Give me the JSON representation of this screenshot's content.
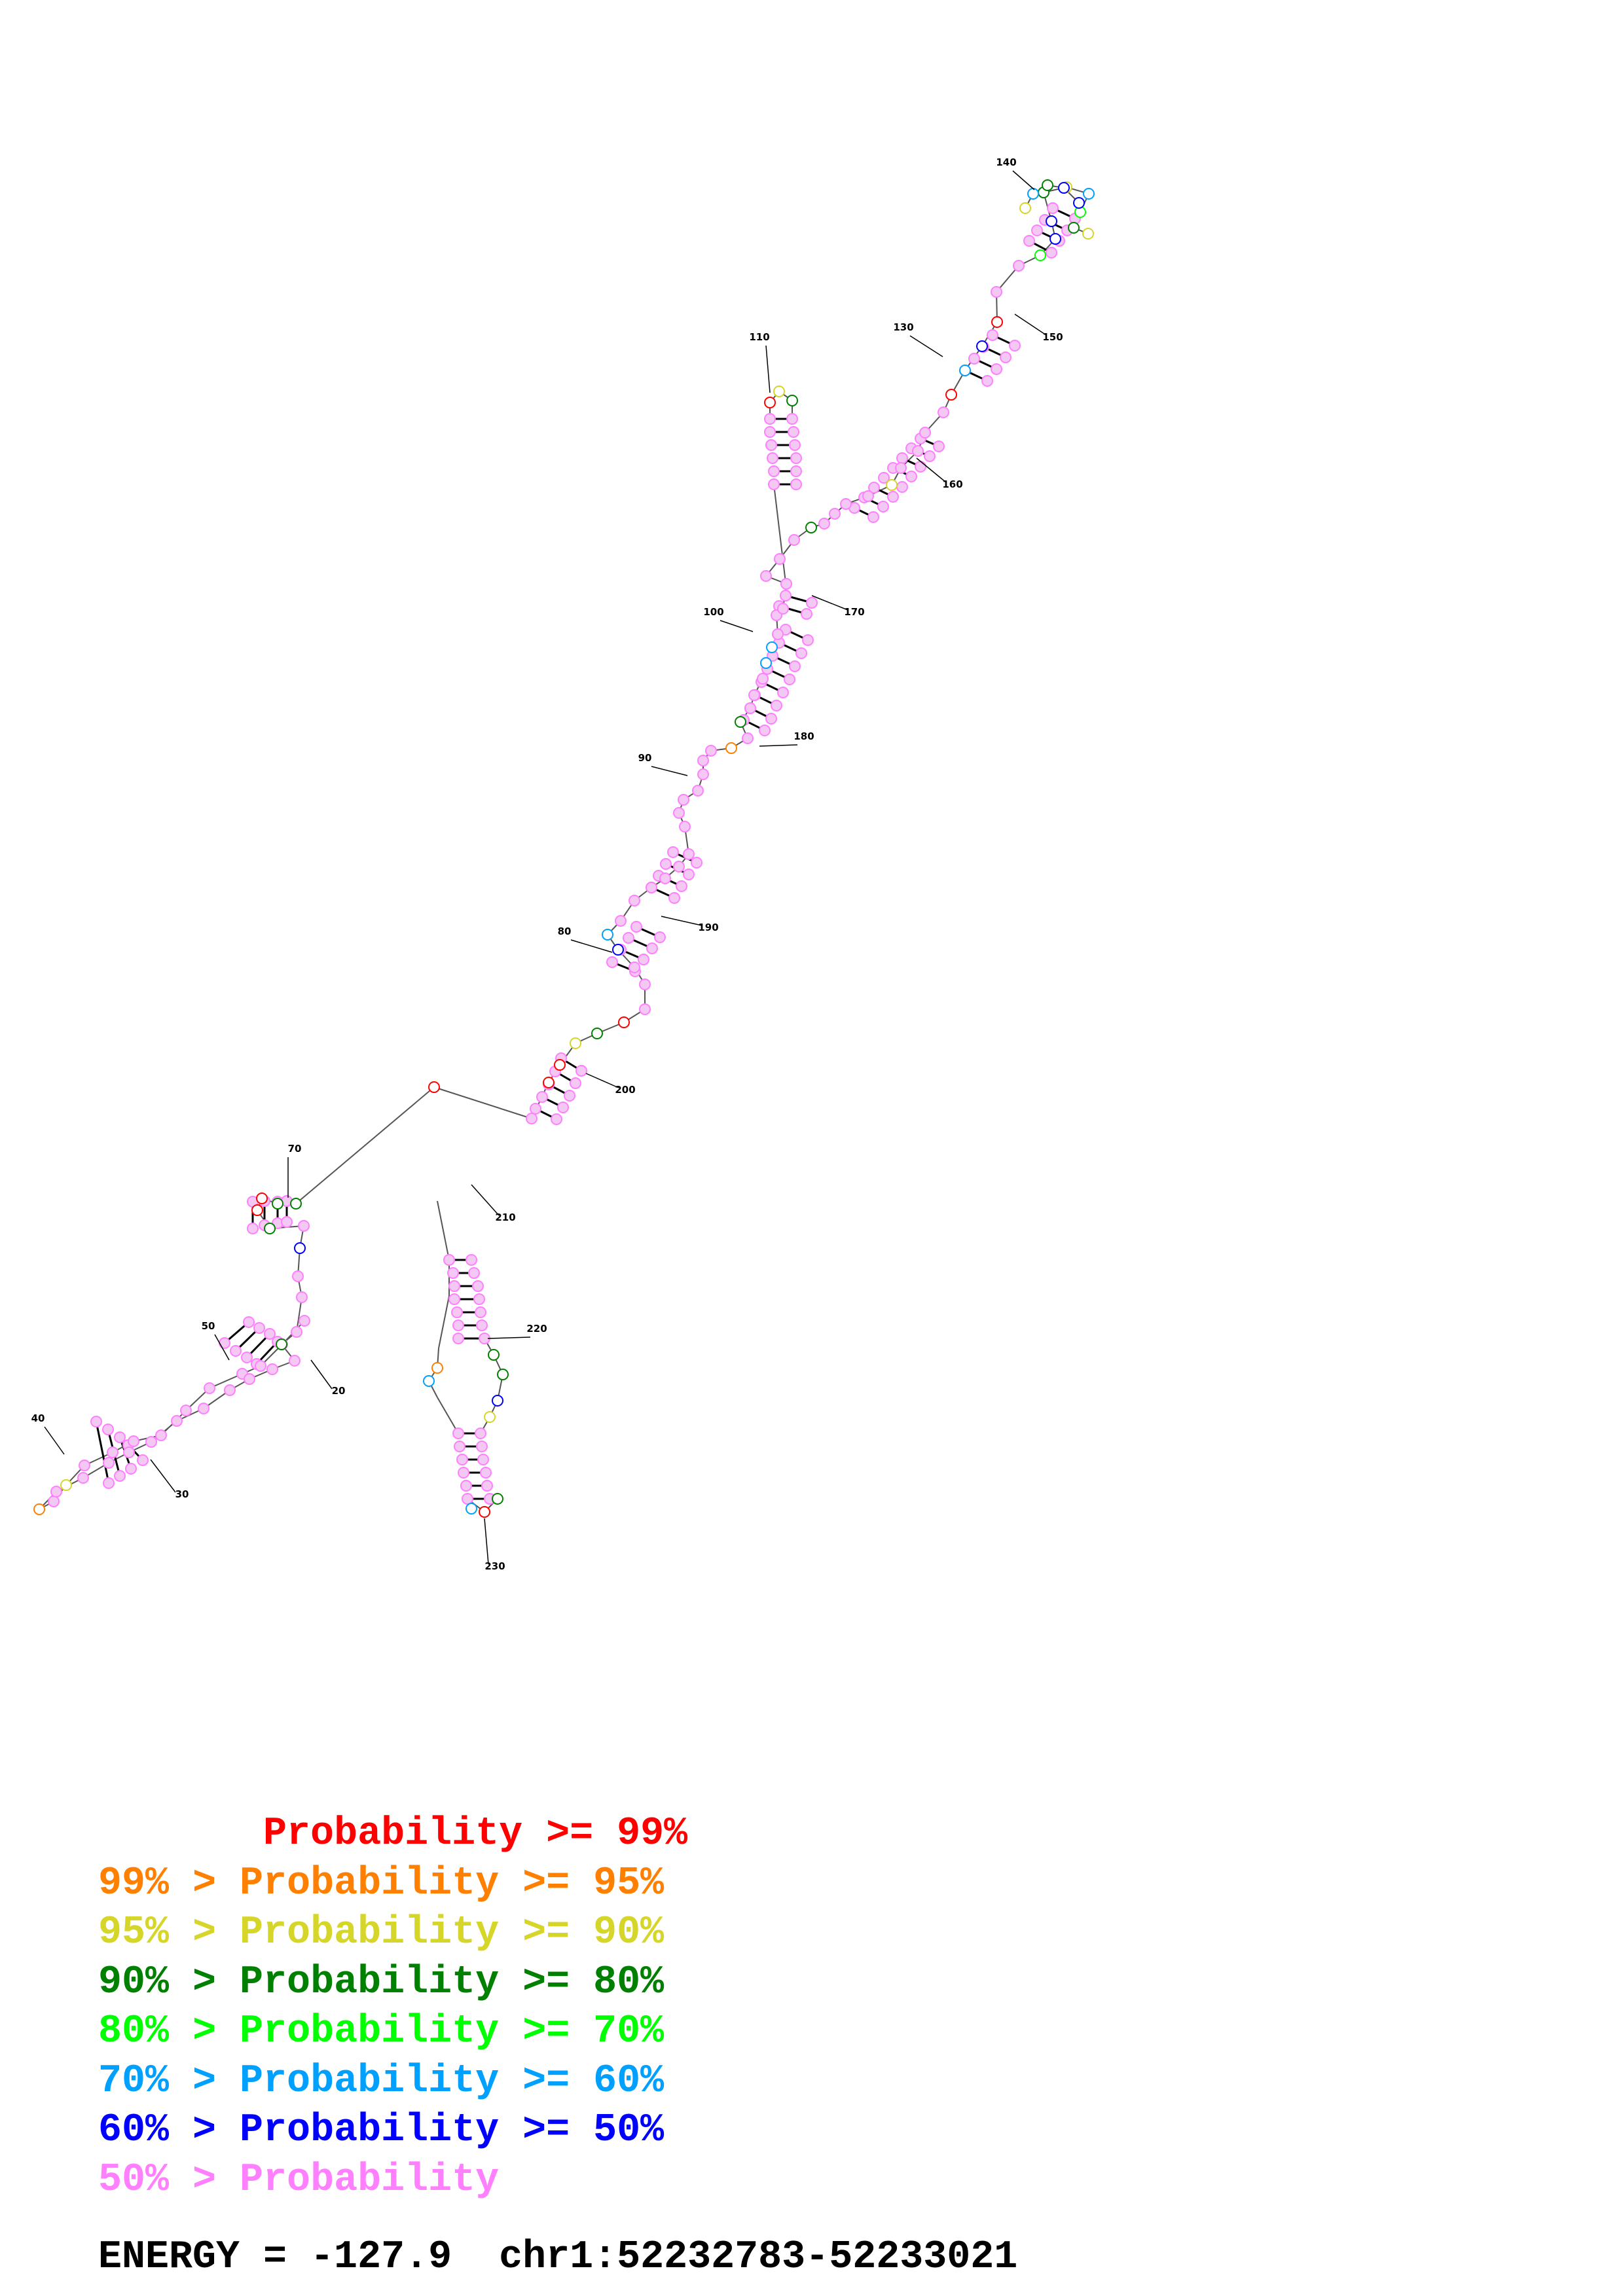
{
  "diagram": {
    "kind": "RNA secondary structure",
    "position_labels": [
      "20",
      "30",
      "40",
      "50",
      "70",
      "80",
      "90",
      "100",
      "110",
      "130",
      "140",
      "150",
      "160",
      "170",
      "180",
      "190",
      "200",
      "210",
      "220",
      "230"
    ]
  },
  "legend": {
    "rows": [
      {
        "prefix": "       ",
        "text": "Probability >= 99%",
        "color": "#ff0000"
      },
      {
        "prefix": "99% > ",
        "text": "Probability >= 95%",
        "color": "#ff8000"
      },
      {
        "prefix": "95% > ",
        "text": "Probability >= 90%",
        "color": "#d6d62a"
      },
      {
        "prefix": "90% > ",
        "text": "Probability >= 80%",
        "color": "#008000"
      },
      {
        "prefix": "80% > ",
        "text": "Probability >= 70%",
        "color": "#00ff00"
      },
      {
        "prefix": "70% > ",
        "text": "Probability >= 60%",
        "color": "#00a0ff"
      },
      {
        "prefix": "60% > ",
        "text": "Probability >= 50%",
        "color": "#0000ff"
      },
      {
        "prefix": "50% > ",
        "text": "Probability",
        "color": "#ff80ff"
      }
    ]
  },
  "footer": {
    "energy_label": "ENERGY = -127.9",
    "region": "chr1:52232783-52233021"
  },
  "colors": {
    "p99": "#ff0000",
    "p95": "#ff8000",
    "p90": "#d6d62a",
    "p80": "#008000",
    "p70": "#00ff00",
    "p60": "#00a0ff",
    "p50": "#0000ff",
    "plow": "#ff80ff",
    "backbone": "#555555",
    "pair": "#000000"
  }
}
